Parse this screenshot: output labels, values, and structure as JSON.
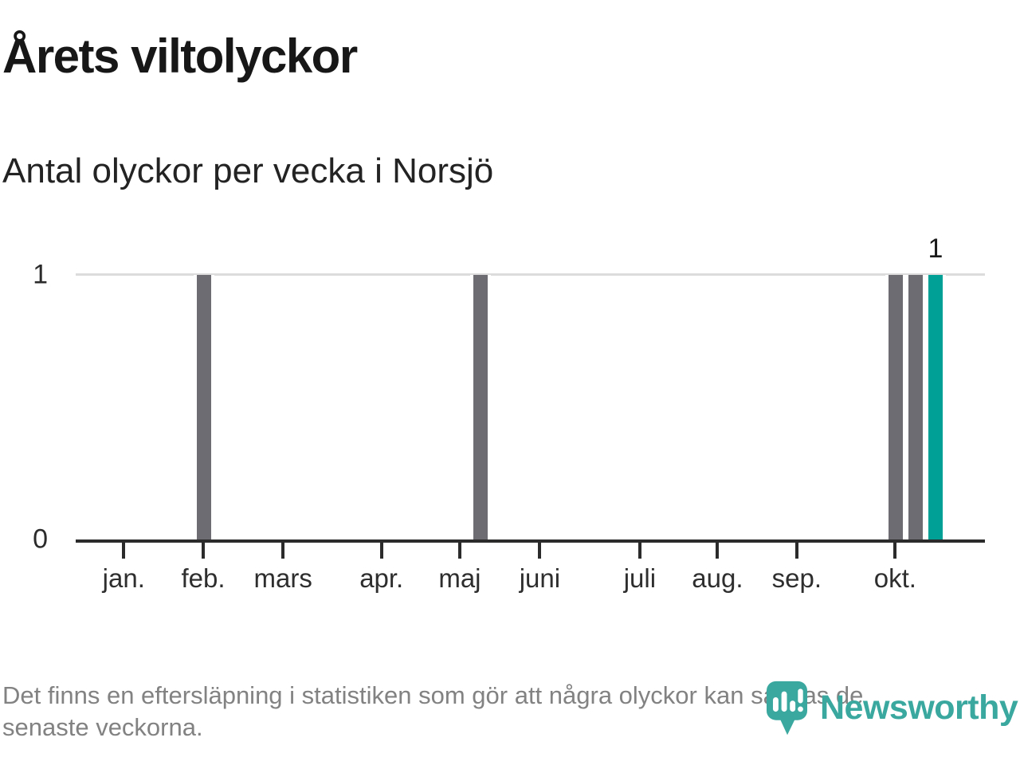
{
  "header": {
    "title": "Årets viltolyckor",
    "subtitle": "Antal olyckor per vecka i Norsjö"
  },
  "chart_data": {
    "type": "bar",
    "title": "Årets viltolyckor",
    "subtitle": "Antal olyckor per vecka i Norsjö",
    "xlabel": "",
    "ylabel": "Antal olyckor per vecka",
    "x_unit": "week of year",
    "num_weeks": 46,
    "first_week": 1,
    "values": [
      0,
      0,
      0,
      0,
      0,
      0,
      1,
      0,
      0,
      0,
      0,
      0,
      0,
      0,
      0,
      0,
      0,
      0,
      0,
      0,
      1,
      0,
      0,
      0,
      0,
      0,
      0,
      0,
      0,
      0,
      0,
      0,
      0,
      0,
      0,
      0,
      0,
      0,
      0,
      0,
      0,
      1,
      1,
      1,
      0,
      0
    ],
    "weeks_with_accidents": [
      7,
      21,
      42,
      43,
      44
    ],
    "highlight_last_index": 43,
    "last_bar_label": "1",
    "ylim": [
      0,
      1
    ],
    "ytick_labels": [
      "1",
      "0"
    ],
    "grid": "single horizontal gridline at y=1",
    "legend": "none",
    "month_ticks": [
      {
        "label": "jan.",
        "week": 2.43
      },
      {
        "label": "feb.",
        "week": 6.45
      },
      {
        "label": "mars",
        "week": 10.49
      },
      {
        "label": "apr.",
        "week": 15.47
      },
      {
        "label": "maj",
        "week": 19.43
      },
      {
        "label": "juni",
        "week": 23.48
      },
      {
        "label": "juli",
        "week": 28.54
      },
      {
        "label": "aug.",
        "week": 32.47
      },
      {
        "label": "sep.",
        "week": 36.48
      },
      {
        "label": "okt.",
        "week": 41.46
      }
    ],
    "colors": {
      "bar": "#6c6c72",
      "highlight": "#00a096",
      "gridline": "#dcdcdc",
      "axis": "#2b2b2b"
    }
  },
  "footer": {
    "lines": [
      "Det finns en eftersläpning i statistiken som gör att några olyckor kan saknas de",
      "senaste veckorna."
    ],
    "text": "Det finns en eftersläpning i statistiken som gör att några olyckor kan saknas de senaste veckorna."
  },
  "logo": {
    "wordmark": "Newsworthy",
    "color": "#3aa89f"
  }
}
